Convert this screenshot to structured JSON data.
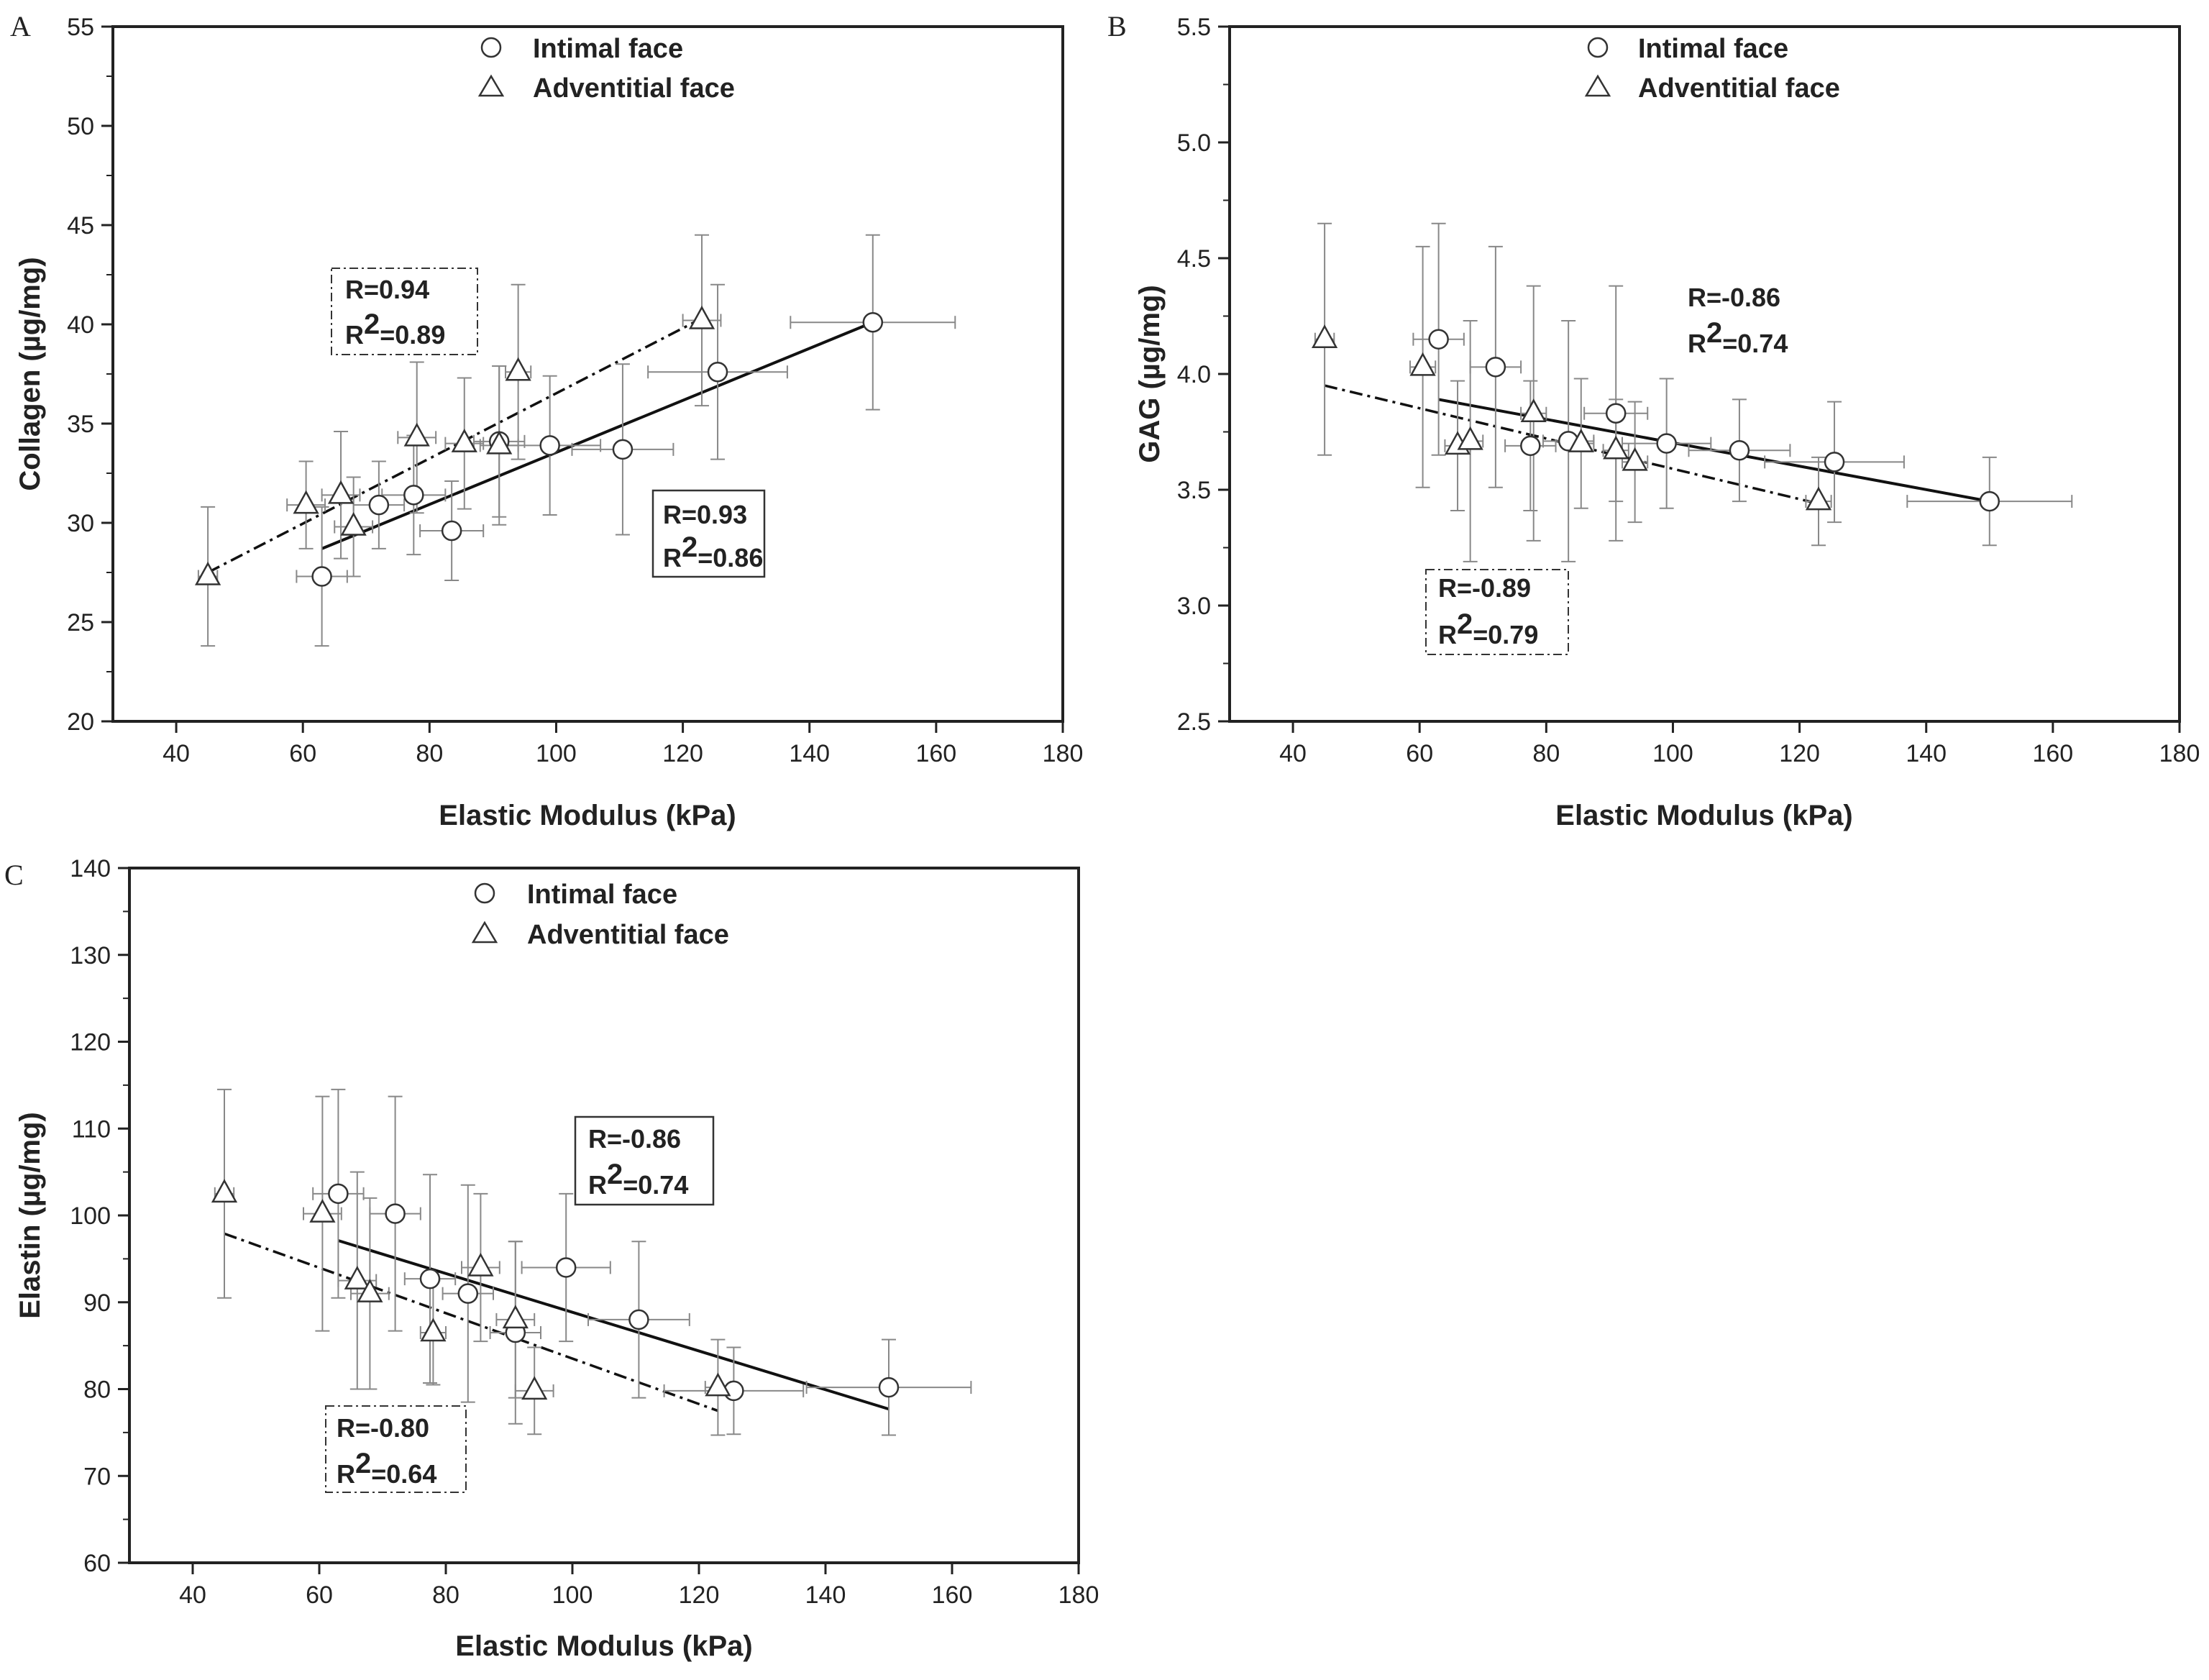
{
  "chart_data": [
    {
      "panel_label": "A",
      "type": "scatter",
      "xlabel": "Elastic Modulus (kPa)",
      "ylabel": "Collagen (µg/mg)",
      "xlim": [
        30,
        180
      ],
      "ylim": [
        20,
        55
      ],
      "xticks": [
        40,
        60,
        80,
        100,
        120,
        140,
        160,
        180
      ],
      "yticks": [
        20,
        25,
        30,
        35,
        40,
        45,
        50,
        55
      ],
      "ytick_labels": [
        "20",
        "25",
        "30",
        "35",
        "40",
        "45",
        "50",
        "55"
      ],
      "legend": {
        "position": "top-center",
        "entries": [
          {
            "label": "Intimal face",
            "marker": "circle"
          },
          {
            "label": "Adventitial face",
            "marker": "triangle"
          }
        ]
      },
      "series": [
        {
          "name": "Intimal face",
          "marker": "circle",
          "points": [
            {
              "x": 63,
              "y": 27.3,
              "xerr": 4,
              "yerr": 3.5
            },
            {
              "x": 72,
              "y": 30.9,
              "xerr": 4,
              "yerr": 2.2
            },
            {
              "x": 77.5,
              "y": 31.4,
              "xerr": 5,
              "yerr": 3.0
            },
            {
              "x": 83.5,
              "y": 29.6,
              "xerr": 5,
              "yerr": 2.5
            },
            {
              "x": 91,
              "y": 34.1,
              "xerr": 4,
              "yerr": 3.8
            },
            {
              "x": 99,
              "y": 33.9,
              "xerr": 8,
              "yerr": 3.5
            },
            {
              "x": 110.5,
              "y": 33.7,
              "xerr": 8,
              "yerr": 4.3
            },
            {
              "x": 125.5,
              "y": 37.6,
              "xerr": 11,
              "yerr": 4.4
            },
            {
              "x": 150,
              "y": 40.1,
              "xerr": 13,
              "yerr": 4.4
            }
          ],
          "fit": {
            "x": [
              63,
              150
            ],
            "y": [
              28.7,
              40.1
            ],
            "style": "solid",
            "R": "R=0.93",
            "R2_base": "R",
            "R2_exp": "2",
            "R2_value": "=0.86"
          }
        },
        {
          "name": "Adventitial face",
          "marker": "triangle",
          "points": [
            {
              "x": 45,
              "y": 27.3,
              "xerr": 1.5,
              "yerr": 3.5
            },
            {
              "x": 60.5,
              "y": 30.9,
              "xerr": 3,
              "yerr": 2.2
            },
            {
              "x": 66,
              "y": 31.4,
              "xerr": 3,
              "yerr": 3.2
            },
            {
              "x": 68,
              "y": 29.8,
              "xerr": 3,
              "yerr": 2.5
            },
            {
              "x": 78,
              "y": 34.3,
              "xerr": 3,
              "yerr": 3.8
            },
            {
              "x": 85.5,
              "y": 34.0,
              "xerr": 3,
              "yerr": 3.3
            },
            {
              "x": 91,
              "y": 33.9,
              "xerr": 3,
              "yerr": 4.0
            },
            {
              "x": 94,
              "y": 37.6,
              "xerr": 2,
              "yerr": 4.4
            },
            {
              "x": 123,
              "y": 40.2,
              "xerr": 3,
              "yerr": 4.3
            }
          ],
          "fit": {
            "x": [
              45,
              123
            ],
            "y": [
              27.5,
              40.3
            ],
            "style": "dashdot",
            "R": "R=0.94",
            "R2_base": "R",
            "R2_exp": "2",
            "R2_value": "=0.89"
          }
        }
      ]
    },
    {
      "panel_label": "B",
      "type": "scatter",
      "xlabel": "Elastic Modulus (kPa)",
      "ylabel": "GAG (µg/mg)",
      "xlim": [
        30,
        180
      ],
      "ylim": [
        2.5,
        5.5
      ],
      "xticks": [
        40,
        60,
        80,
        100,
        120,
        140,
        160,
        180
      ],
      "yticks": [
        2.5,
        3.0,
        3.5,
        4.0,
        4.5,
        5.0,
        5.5
      ],
      "ytick_labels": [
        "2.5",
        "3.0",
        "3.5",
        "4.0",
        "4.5",
        "5.0",
        "5.5"
      ],
      "legend": {
        "position": "top-center",
        "entries": [
          {
            "label": "Intimal face",
            "marker": "circle"
          },
          {
            "label": "Adventitial face",
            "marker": "triangle"
          }
        ]
      },
      "series": [
        {
          "name": "Intimal face",
          "marker": "circle",
          "points": [
            {
              "x": 63,
              "y": 4.15,
              "xerr": 4,
              "yerr": 0.5
            },
            {
              "x": 72,
              "y": 4.03,
              "xerr": 4,
              "yerr": 0.52
            },
            {
              "x": 77.5,
              "y": 3.69,
              "xerr": 4,
              "yerr": 0.28
            },
            {
              "x": 83.5,
              "y": 3.71,
              "xerr": 4,
              "yerr": 0.52
            },
            {
              "x": 91,
              "y": 3.83,
              "xerr": 5,
              "yerr": 0.55
            },
            {
              "x": 99,
              "y": 3.7,
              "xerr": 7,
              "yerr": 0.28
            },
            {
              "x": 110.5,
              "y": 3.67,
              "xerr": 8,
              "yerr": 0.22
            },
            {
              "x": 125.5,
              "y": 3.62,
              "xerr": 11,
              "yerr": 0.26
            },
            {
              "x": 150,
              "y": 3.45,
              "xerr": 13,
              "yerr": 0.19
            }
          ],
          "fit": {
            "x": [
              63,
              150
            ],
            "y": [
              3.89,
              3.45
            ],
            "style": "solid",
            "R": "R=-0.86",
            "R2_base": "R",
            "R2_exp": "2",
            "R2_value": "=0.74"
          }
        },
        {
          "name": "Adventitial face",
          "marker": "triangle",
          "points": [
            {
              "x": 45,
              "y": 4.15,
              "xerr": 1.5,
              "yerr": 0.5
            },
            {
              "x": 60.5,
              "y": 4.03,
              "xerr": 2,
              "yerr": 0.52
            },
            {
              "x": 66,
              "y": 3.69,
              "xerr": 2,
              "yerr": 0.28
            },
            {
              "x": 68,
              "y": 3.71,
              "xerr": 2,
              "yerr": 0.52
            },
            {
              "x": 78,
              "y": 3.83,
              "xerr": 2,
              "yerr": 0.55
            },
            {
              "x": 85.5,
              "y": 3.7,
              "xerr": 2,
              "yerr": 0.28
            },
            {
              "x": 91,
              "y": 3.67,
              "xerr": 2,
              "yerr": 0.22
            },
            {
              "x": 94,
              "y": 3.62,
              "xerr": 2,
              "yerr": 0.26
            },
            {
              "x": 123,
              "y": 3.45,
              "xerr": 2,
              "yerr": 0.19
            }
          ],
          "fit": {
            "x": [
              45,
              123
            ],
            "y": [
              3.95,
              3.44
            ],
            "style": "dashdot",
            "R": "R=-0.89",
            "R2_base": "R",
            "R2_exp": "2",
            "R2_value": "=0.79"
          }
        }
      ]
    },
    {
      "panel_label": "C",
      "type": "scatter",
      "xlabel": "Elastic Modulus (kPa)",
      "ylabel": "Elastin (µg/mg)",
      "xlim": [
        30,
        180
      ],
      "ylim": [
        60,
        140
      ],
      "xticks": [
        40,
        60,
        80,
        100,
        120,
        140,
        160,
        180
      ],
      "yticks": [
        60,
        70,
        80,
        90,
        100,
        110,
        120,
        130,
        140
      ],
      "ytick_labels": [
        "60",
        "70",
        "80",
        "90",
        "100",
        "110",
        "120",
        "130",
        "140"
      ],
      "legend": {
        "position": "top-center",
        "entries": [
          {
            "label": "Intimal face",
            "marker": "circle"
          },
          {
            "label": "Adventitial face",
            "marker": "triangle"
          }
        ]
      },
      "series": [
        {
          "name": "Intimal face",
          "marker": "circle",
          "points": [
            {
              "x": 63,
              "y": 102.5,
              "xerr": 4,
              "yerr": 12
            },
            {
              "x": 72,
              "y": 100.2,
              "xerr": 4,
              "yerr": 13.5
            },
            {
              "x": 77.5,
              "y": 92.7,
              "xerr": 4,
              "yerr": 12
            },
            {
              "x": 83.5,
              "y": 91.0,
              "xerr": 4,
              "yerr": 12.5
            },
            {
              "x": 91,
              "y": 86.5,
              "xerr": 4,
              "yerr": 10.5
            },
            {
              "x": 99,
              "y": 94.0,
              "xerr": 7,
              "yerr": 8.5
            },
            {
              "x": 110.5,
              "y": 88.0,
              "xerr": 8,
              "yerr": 9
            },
            {
              "x": 125.5,
              "y": 79.8,
              "xerr": 11,
              "yerr": 5
            },
            {
              "x": 150,
              "y": 80.2,
              "xerr": 13,
              "yerr": 5.5
            }
          ],
          "fit": {
            "x": [
              63,
              150
            ],
            "y": [
              97.1,
              77.7
            ],
            "style": "solid",
            "R": "R=-0.86",
            "R2_base": "R",
            "R2_exp": "2",
            "R2_value": "=0.74"
          }
        },
        {
          "name": "Adventitial face",
          "marker": "triangle",
          "points": [
            {
              "x": 45,
              "y": 102.5,
              "xerr": 1.5,
              "yerr": 12
            },
            {
              "x": 60.5,
              "y": 100.2,
              "xerr": 3,
              "yerr": 13.5
            },
            {
              "x": 66,
              "y": 92.5,
              "xerr": 3,
              "yerr": 12.5
            },
            {
              "x": 68,
              "y": 91.0,
              "xerr": 3,
              "yerr": 11
            },
            {
              "x": 78,
              "y": 86.5,
              "xerr": 2,
              "yerr": 6
            },
            {
              "x": 85.5,
              "y": 94.0,
              "xerr": 3,
              "yerr": 8.5
            },
            {
              "x": 91,
              "y": 88.0,
              "xerr": 3,
              "yerr": 9
            },
            {
              "x": 94,
              "y": 79.8,
              "xerr": 3,
              "yerr": 5
            },
            {
              "x": 123,
              "y": 80.2,
              "xerr": 2,
              "yerr": 5.5
            }
          ],
          "fit": {
            "x": [
              45,
              123
            ],
            "y": [
              97.9,
              77.5
            ],
            "style": "dashdot",
            "R": "R=-0.80",
            "R2_base": "R",
            "R2_exp": "2",
            "R2_value": "=0.64"
          }
        }
      ]
    }
  ]
}
